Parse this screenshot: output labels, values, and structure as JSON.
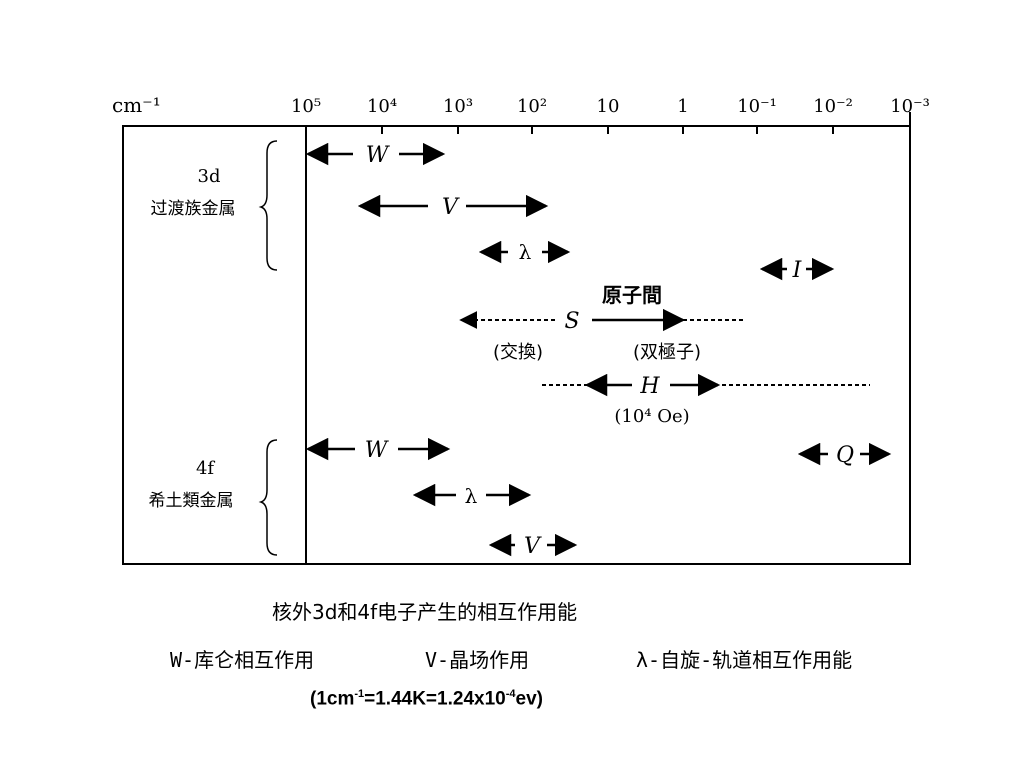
{
  "axis": {
    "unit_label": "cm⁻¹",
    "ticks": [
      "10⁵",
      "10⁴",
      "10³",
      "10²",
      "10",
      "1",
      "10⁻¹",
      "10⁻²",
      "10⁻³"
    ]
  },
  "groups": {
    "d3": {
      "line1": "3d",
      "line2": "过渡族金属"
    },
    "f4": {
      "line1": "4f",
      "line2": "希土類金属"
    }
  },
  "interactions": {
    "d_W": "W",
    "d_V": "V",
    "d_lambda": "λ",
    "d_I": "I",
    "S": "S",
    "S_title": "原子間",
    "S_exchange": "(交換)",
    "S_dipole": "(双極子)",
    "H": "H",
    "H_note": "(10⁴ Oe)",
    "f_W": "W",
    "f_lambda": "λ",
    "f_V": "V",
    "f_Q": "Q"
  },
  "caption": {
    "line1": "核外3d和4f电子产生的相互作用能",
    "legend_w": "W-库仑相互作用",
    "legend_v": "V-晶场作用",
    "legend_l": "λ-自旋-轨道相互作用能",
    "conv_a": "(1cm",
    "conv_sup1": "-1",
    "conv_b": "=1.44K=1.24x10",
    "conv_sup2": "-4",
    "conv_c": "ev)"
  }
}
